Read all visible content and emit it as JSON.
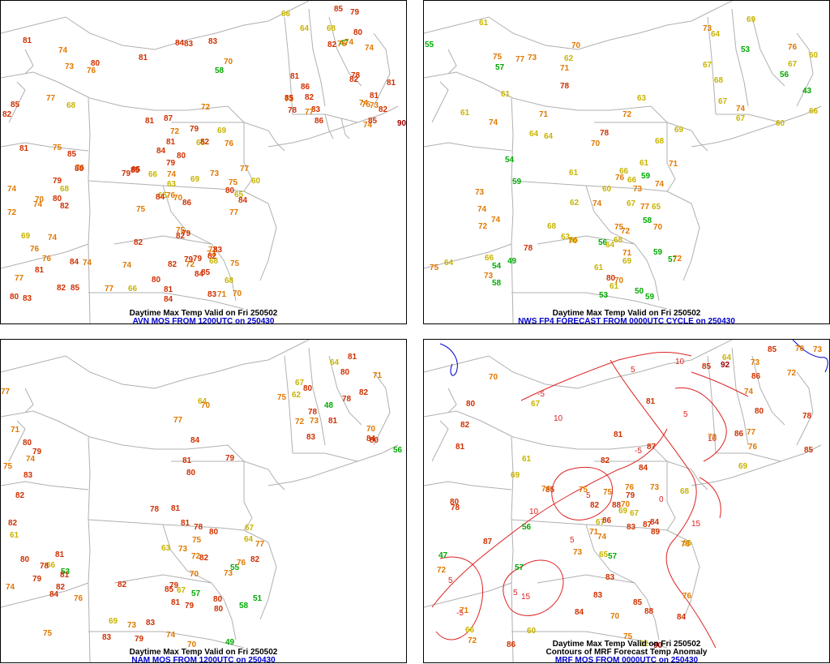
{
  "colors": {
    "cold": "#00aa00",
    "cool": "#c8b400",
    "mild": "#e07800",
    "warm": "#d03000",
    "hot": "#a00000",
    "border": "#b0b0b0",
    "contour": "#dd2222",
    "contour_blue": "#0000cc"
  },
  "panels": [
    {
      "title": "Daytime Max Temp Valid on Fri 250502",
      "source": "AVN MOS FROM 1200UTC on 250430",
      "values": [
        "60",
        "69",
        "76",
        "72",
        "47",
        "65",
        "58",
        "63",
        "70",
        "65",
        "66",
        "70",
        "68",
        "72",
        "75",
        "73",
        "68",
        "79",
        "66",
        "68",
        "70",
        "73",
        "69",
        "76",
        "81",
        "77",
        "77",
        "75",
        "78",
        "76",
        "78",
        "73",
        "71",
        "74",
        "69",
        "72",
        "80",
        "82",
        "81",
        "73",
        "70",
        "74",
        "77",
        "77",
        "74",
        "74",
        "80",
        "79",
        "76",
        "81",
        "75",
        "79",
        "65",
        "73",
        "72",
        "74",
        "66",
        "68",
        "64",
        "81",
        "82",
        "79",
        "74",
        "76",
        "76",
        "75",
        "79",
        "74",
        "77",
        "81",
        "74",
        "74",
        "75",
        "83",
        "85",
        "83",
        "83",
        "80",
        "81",
        "85",
        "82",
        "80",
        "81",
        "84",
        "79",
        "90",
        "68",
        "82",
        "86",
        "83",
        "84",
        "80",
        "85",
        "83",
        "84",
        "82",
        "84",
        "86",
        "85",
        "87",
        "80",
        "79",
        "81",
        "84",
        "82",
        "85",
        "84",
        "82",
        "76",
        "72",
        "82",
        "84",
        "85",
        "83",
        "81",
        "82",
        "82",
        "80",
        "75",
        "74",
        "77",
        "79",
        "82",
        "81",
        "85",
        "82",
        "85",
        "85",
        "86",
        "80",
        "74"
      ]
    },
    {
      "title": "Daytime Max Temp Valid on Fri 250502",
      "source": "NWS FP4 FORECAST FROM 0000UTC CYCLE on 250430",
      "values": [
        "49",
        "58",
        "65",
        "61",
        "43",
        "54",
        "50",
        "53",
        "59",
        "66",
        "63",
        "56",
        "53",
        "55",
        "54",
        "56",
        "59",
        "61",
        "61",
        "64",
        "60",
        "61",
        "59",
        "59",
        "57",
        "64",
        "63",
        "66",
        "64",
        "67",
        "61",
        "61",
        "60",
        "64",
        "62",
        "58",
        "57",
        "61",
        "62",
        "67",
        "71",
        "72",
        "67",
        "68",
        "73",
        "67",
        "66",
        "60",
        "66",
        "70",
        "74",
        "75",
        "68",
        "70",
        "72",
        "70",
        "73",
        "71",
        "77",
        "75",
        "68",
        "69",
        "70",
        "73",
        "74",
        "73",
        "76",
        "71",
        "77",
        "74",
        "72",
        "80",
        "76",
        "78",
        "78",
        "71",
        "70",
        "75",
        "74",
        "66",
        "64",
        "69",
        "69",
        "67",
        "68",
        "73",
        "74",
        "72",
        "74",
        "78"
      ]
    },
    {
      "title": "Daytime Max Temp Valid on Fri 250502",
      "source": "NAM MOS FROM 1200UTC on 250430",
      "values": [
        "49",
        "64",
        "70",
        "71",
        "48",
        "58",
        "51",
        "55",
        "53",
        "57",
        "56",
        "61",
        "62",
        "63",
        "66",
        "64",
        "64",
        "67",
        "70",
        "72",
        "73",
        "75",
        "67",
        "69",
        "72",
        "76",
        "77",
        "70",
        "73",
        "75",
        "73",
        "74",
        "77",
        "78",
        "78",
        "80",
        "71",
        "70",
        "74",
        "79",
        "78",
        "80",
        "82",
        "81",
        "80",
        "80",
        "81",
        "82",
        "81",
        "79",
        "76",
        "81",
        "81",
        "82",
        "79",
        "84",
        "81",
        "83",
        "85",
        "82",
        "80",
        "84",
        "78",
        "77",
        "75",
        "67",
        "80",
        "78",
        "79",
        "81",
        "74",
        "73",
        "81",
        "82",
        "83",
        "80",
        "82",
        "82",
        "79",
        "75",
        "79",
        "84",
        "83",
        "80",
        "83",
        "80"
      ]
    },
    {
      "title": "Daytime Max Temp Valid on Fri 250502",
      "subtitle": "Contours of MRF Forecast Temp Anomaly",
      "source": "MRF MOS FROM 0000UTC on 250430",
      "values": [
        "57",
        "69",
        "67",
        "65",
        "47",
        "56",
        "57",
        "60",
        "61",
        "62",
        "65",
        "70",
        "70",
        "74",
        "72",
        "73",
        "70",
        "75",
        "76",
        "72",
        "78",
        "72",
        "73",
        "76",
        "74",
        "73",
        "67",
        "69",
        "68",
        "66",
        "70",
        "72",
        "78",
        "79",
        "80",
        "81",
        "82",
        "83",
        "84",
        "82",
        "85",
        "75",
        "67",
        "71",
        "73",
        "69",
        "64",
        "76",
        "77",
        "82",
        "81",
        "92",
        "86",
        "84",
        "84",
        "85",
        "85",
        "86",
        "87",
        "88",
        "71",
        "75",
        "76",
        "83",
        "84",
        "86",
        "85",
        "87",
        "89",
        "74",
        "81",
        "80",
        "83",
        "87",
        "88",
        "90",
        "85",
        "86",
        "80"
      ],
      "contour_labels": [
        "5",
        "10",
        "-5",
        "5",
        "15",
        "10",
        "10",
        "-5",
        "5",
        "15",
        "5",
        "-5",
        "5",
        "5",
        "0",
        "10"
      ]
    }
  ]
}
